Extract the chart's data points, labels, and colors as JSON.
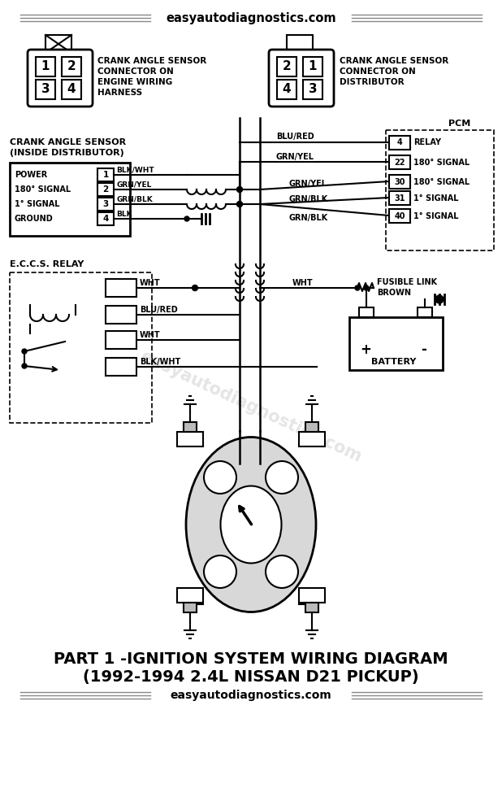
{
  "bg_color": "#ffffff",
  "gray_color": "#888888",
  "title_line1": "PART 1 -IGNITION SYSTEM WIRING DIAGRAM",
  "title_line2": "(1992-1994 2.4L NISSAN D21 PICKUP)",
  "website": "easyautodiagnostics.com"
}
